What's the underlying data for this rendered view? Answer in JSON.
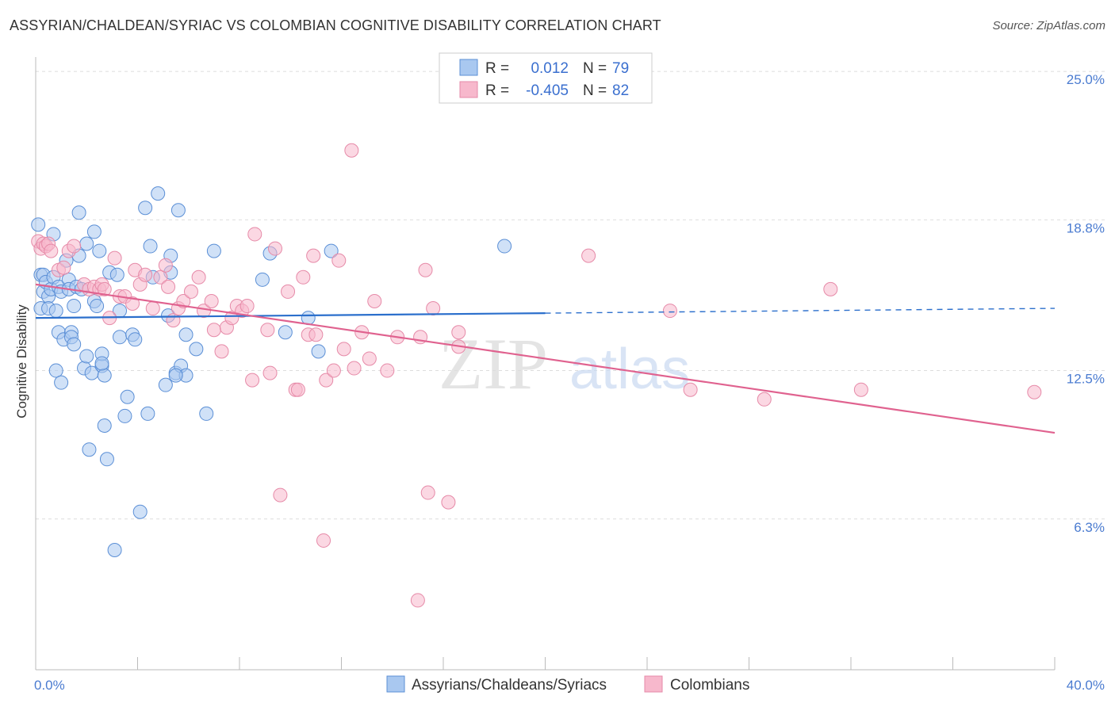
{
  "title": "ASSYRIAN/CHALDEAN/SYRIAC VS COLOMBIAN COGNITIVE DISABILITY CORRELATION CHART",
  "source": "Source: ZipAtlas.com",
  "watermark": {
    "zip": "ZIP",
    "atlas": "atlas"
  },
  "colors": {
    "blue_fill": "#a9c8f0",
    "blue_stroke": "#5b8fd6",
    "blue_line": "#2b6fcc",
    "pink_fill": "#f7b8cc",
    "pink_stroke": "#e68aa8",
    "pink_line": "#e0628f",
    "grid": "#dddddd",
    "tick_label": "#4a7bd0"
  },
  "legend": {
    "rows": [
      {
        "r_label": "R =",
        "r_value": "0.012",
        "n_label": "N =",
        "n_value": "79"
      },
      {
        "r_label": "R =",
        "r_value": "-0.405",
        "n_label": "N =",
        "n_value": "82"
      }
    ]
  },
  "chart_data": {
    "type": "scatter",
    "title": "ASSYRIAN/CHALDEAN/SYRIAC VS COLOMBIAN COGNITIVE DISABILITY CORRELATION CHART",
    "xlabel": "",
    "ylabel": "Cognitive Disability",
    "xlim": [
      0,
      40
    ],
    "ylim": [
      0,
      25.6
    ],
    "x_tick_labels": [
      "0.0%",
      "40.0%"
    ],
    "y_ticks": [
      6.3,
      12.5,
      18.8,
      25.0
    ],
    "y_tick_labels": [
      "6.3%",
      "12.5%",
      "18.8%",
      "25.0%"
    ],
    "grid": true,
    "legend_position": "top-center",
    "series": [
      {
        "name": "Assyrians/Chaldeans/Syriacs",
        "color": "blue",
        "trend": {
          "x_start": 0,
          "y_start": 14.7,
          "x_solid_end": 20,
          "x_end": 40,
          "y_end": 15.1
        },
        "points": [
          [
            0.1,
            18.6
          ],
          [
            0.2,
            16.5
          ],
          [
            0.2,
            15.1
          ],
          [
            0.3,
            16.5
          ],
          [
            0.3,
            15.8
          ],
          [
            0.4,
            16.2
          ],
          [
            0.5,
            15.6
          ],
          [
            0.5,
            15.1
          ],
          [
            0.6,
            15.9
          ],
          [
            0.7,
            16.4
          ],
          [
            0.7,
            18.2
          ],
          [
            0.8,
            12.5
          ],
          [
            0.8,
            15.0
          ],
          [
            0.9,
            14.1
          ],
          [
            0.9,
            16.0
          ],
          [
            1.0,
            12.0
          ],
          [
            1.0,
            15.8
          ],
          [
            1.1,
            13.8
          ],
          [
            1.2,
            17.1
          ],
          [
            1.3,
            16.3
          ],
          [
            1.3,
            15.9
          ],
          [
            1.4,
            14.1
          ],
          [
            1.4,
            13.9
          ],
          [
            1.5,
            13.6
          ],
          [
            1.5,
            15.2
          ],
          [
            1.6,
            16.0
          ],
          [
            1.7,
            17.3
          ],
          [
            1.7,
            19.1
          ],
          [
            1.8,
            15.9
          ],
          [
            1.9,
            12.6
          ],
          [
            2.0,
            17.8
          ],
          [
            2.0,
            13.1
          ],
          [
            2.1,
            9.2
          ],
          [
            2.2,
            12.4
          ],
          [
            2.3,
            15.4
          ],
          [
            2.3,
            18.3
          ],
          [
            2.4,
            15.2
          ],
          [
            2.5,
            17.5
          ],
          [
            2.6,
            12.7
          ],
          [
            2.6,
            13.2
          ],
          [
            2.7,
            10.2
          ],
          [
            2.7,
            12.3
          ],
          [
            2.8,
            8.8
          ],
          [
            2.9,
            16.6
          ],
          [
            3.1,
            5.0
          ],
          [
            3.2,
            16.5
          ],
          [
            3.3,
            15.0
          ],
          [
            3.3,
            13.9
          ],
          [
            3.5,
            10.6
          ],
          [
            3.6,
            11.4
          ],
          [
            3.8,
            14.0
          ],
          [
            3.9,
            13.8
          ],
          [
            4.1,
            6.6
          ],
          [
            4.3,
            19.3
          ],
          [
            4.4,
            10.7
          ],
          [
            4.5,
            17.7
          ],
          [
            4.6,
            16.4
          ],
          [
            4.8,
            19.9
          ],
          [
            5.1,
            11.9
          ],
          [
            5.2,
            14.8
          ],
          [
            5.3,
            17.3
          ],
          [
            5.3,
            16.6
          ],
          [
            5.5,
            12.4
          ],
          [
            5.6,
            19.2
          ],
          [
            5.7,
            12.7
          ],
          [
            5.9,
            12.3
          ],
          [
            5.9,
            14.0
          ],
          [
            6.3,
            13.4
          ],
          [
            6.7,
            10.7
          ],
          [
            7.0,
            17.5
          ],
          [
            8.9,
            16.3
          ],
          [
            9.2,
            17.4
          ],
          [
            9.8,
            14.1
          ],
          [
            10.7,
            14.7
          ],
          [
            11.1,
            13.3
          ],
          [
            11.6,
            17.5
          ],
          [
            18.4,
            17.7
          ],
          [
            5.5,
            12.3
          ],
          [
            2.6,
            12.8
          ]
        ]
      },
      {
        "name": "Colombians",
        "color": "pink",
        "trend": {
          "x_start": 0,
          "y_start": 16.1,
          "x_end": 40,
          "y_end": 9.9
        },
        "points": [
          [
            0.1,
            17.9
          ],
          [
            0.2,
            17.6
          ],
          [
            0.3,
            17.8
          ],
          [
            0.4,
            17.7
          ],
          [
            0.5,
            17.8
          ],
          [
            0.6,
            17.5
          ],
          [
            0.9,
            16.7
          ],
          [
            1.1,
            16.8
          ],
          [
            1.3,
            17.5
          ],
          [
            1.5,
            17.7
          ],
          [
            1.9,
            16.1
          ],
          [
            2.1,
            15.9
          ],
          [
            2.3,
            16.0
          ],
          [
            2.5,
            15.9
          ],
          [
            2.6,
            16.1
          ],
          [
            2.7,
            15.9
          ],
          [
            2.9,
            14.7
          ],
          [
            3.1,
            17.2
          ],
          [
            3.3,
            15.6
          ],
          [
            3.5,
            15.6
          ],
          [
            3.8,
            15.3
          ],
          [
            3.9,
            16.7
          ],
          [
            4.1,
            16.1
          ],
          [
            4.3,
            16.5
          ],
          [
            4.6,
            15.1
          ],
          [
            4.9,
            16.4
          ],
          [
            5.1,
            16.9
          ],
          [
            5.2,
            16.0
          ],
          [
            5.4,
            14.6
          ],
          [
            5.6,
            15.1
          ],
          [
            5.8,
            15.4
          ],
          [
            6.1,
            15.8
          ],
          [
            6.4,
            16.4
          ],
          [
            6.6,
            15.0
          ],
          [
            6.9,
            15.4
          ],
          [
            7.0,
            14.2
          ],
          [
            7.3,
            13.3
          ],
          [
            7.5,
            14.3
          ],
          [
            7.7,
            14.7
          ],
          [
            7.9,
            15.2
          ],
          [
            8.1,
            15.0
          ],
          [
            8.3,
            15.2
          ],
          [
            8.5,
            12.1
          ],
          [
            8.6,
            18.2
          ],
          [
            9.1,
            14.2
          ],
          [
            9.2,
            12.4
          ],
          [
            9.4,
            17.6
          ],
          [
            9.6,
            7.3
          ],
          [
            9.9,
            15.8
          ],
          [
            10.2,
            11.7
          ],
          [
            10.3,
            11.7
          ],
          [
            10.5,
            16.4
          ],
          [
            10.7,
            14.0
          ],
          [
            10.9,
            17.3
          ],
          [
            11.0,
            14.0
          ],
          [
            11.3,
            5.4
          ],
          [
            11.4,
            12.1
          ],
          [
            11.7,
            12.5
          ],
          [
            11.9,
            17.1
          ],
          [
            12.1,
            13.4
          ],
          [
            12.4,
            21.7
          ],
          [
            12.5,
            12.6
          ],
          [
            12.8,
            14.1
          ],
          [
            13.1,
            13.0
          ],
          [
            13.3,
            15.4
          ],
          [
            13.8,
            12.5
          ],
          [
            14.2,
            13.9
          ],
          [
            15.0,
            2.9
          ],
          [
            15.1,
            13.9
          ],
          [
            15.3,
            16.7
          ],
          [
            15.6,
            15.1
          ],
          [
            15.4,
            7.4
          ],
          [
            16.2,
            7.0
          ],
          [
            16.6,
            14.1
          ],
          [
            16.6,
            13.5
          ],
          [
            21.7,
            17.3
          ],
          [
            24.9,
            15.0
          ],
          [
            25.7,
            11.7
          ],
          [
            28.6,
            11.3
          ],
          [
            31.2,
            15.9
          ],
          [
            32.4,
            11.7
          ],
          [
            39.2,
            11.6
          ]
        ]
      }
    ]
  }
}
